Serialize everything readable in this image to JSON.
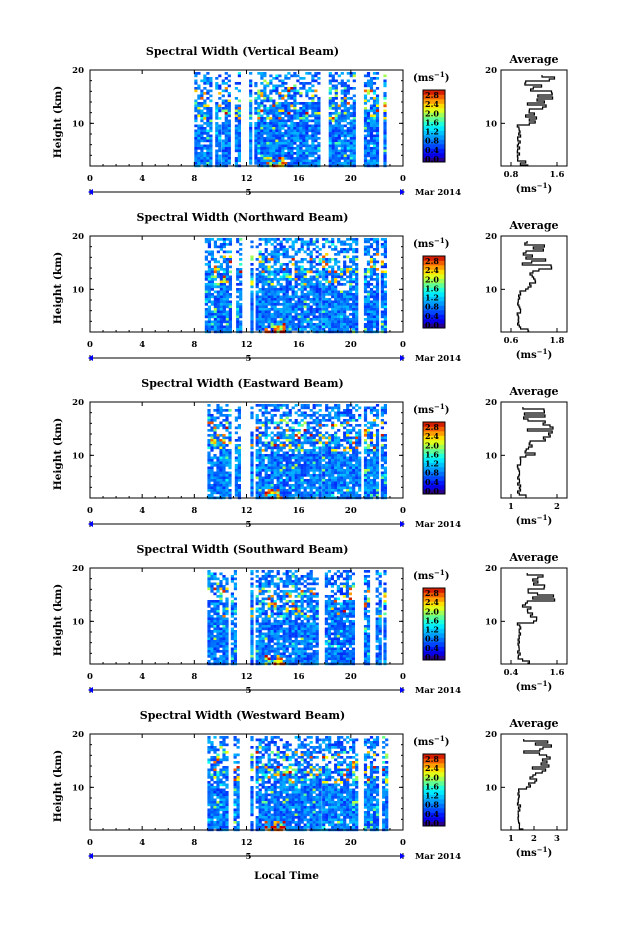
{
  "chart_data": [
    {
      "type": "heatmap",
      "title": "Spectral Width (Vertical Beam)",
      "ylabel": "Height (km)",
      "y_ticks": [
        "20",
        "10"
      ],
      "x_ticks": [
        "0",
        "4",
        "8",
        "12",
        "16",
        "20",
        "0"
      ],
      "date_label": "5",
      "date_suffix": "Mar 2014",
      "colorbar_unit": "(ms-1)",
      "colorbar_ticks": [
        "2.8",
        "2.4",
        "2.0",
        "1.6",
        "1.2",
        "0.8",
        "0.4",
        "0.0"
      ],
      "data_hours": [
        [
          8.0,
          9.2
        ],
        [
          9.6,
          9.9
        ],
        [
          10.1,
          10.7
        ],
        [
          11.1,
          11.4
        ],
        [
          12.2,
          12.4
        ],
        [
          12.6,
          17.5
        ],
        [
          18.3,
          20.3
        ],
        [
          21.0,
          22.0
        ],
        [
          22.5,
          22.7
        ]
      ],
      "average": {
        "title": "Average",
        "x_ticks": [
          "0.8",
          "1.6"
        ],
        "unit": "(ms-1)",
        "y_ticks": [
          "20",
          "10"
        ]
      }
    },
    {
      "type": "heatmap",
      "title": "Spectral Width (Northward Beam)",
      "ylabel": "Height (km)",
      "y_ticks": [
        "20",
        "10"
      ],
      "x_ticks": [
        "0",
        "4",
        "8",
        "12",
        "16",
        "20",
        "0"
      ],
      "date_label": "5",
      "date_suffix": "Mar 2014",
      "colorbar_unit": "(ms-1)",
      "colorbar_ticks": [
        "2.8",
        "2.4",
        "2.0",
        "1.6",
        "1.2",
        "0.8",
        "0.4",
        "0.0"
      ],
      "data_hours": [
        [
          8.8,
          10.8
        ],
        [
          11.2,
          11.5
        ],
        [
          12.3,
          12.5
        ],
        [
          12.7,
          17.6
        ],
        [
          17.8,
          20.5
        ],
        [
          21.0,
          22.0
        ],
        [
          22.3,
          22.6
        ]
      ],
      "average": {
        "title": "Average",
        "x_ticks": [
          "0.6",
          "1.8"
        ],
        "unit": "(ms-1)",
        "y_ticks": [
          "20",
          "10"
        ]
      }
    },
    {
      "type": "heatmap",
      "title": "Spectral Width (Eastward Beam)",
      "ylabel": "Height (km)",
      "y_ticks": [
        "20",
        "10"
      ],
      "x_ticks": [
        "0",
        "4",
        "8",
        "12",
        "16",
        "20",
        "0"
      ],
      "date_label": "5",
      "date_suffix": "Mar 2014",
      "colorbar_unit": "(ms-1)",
      "colorbar_ticks": [
        "2.8",
        "2.4",
        "2.0",
        "1.6",
        "1.2",
        "0.8",
        "0.4",
        "0.0"
      ],
      "data_hours": [
        [
          9.0,
          10.8
        ],
        [
          11.1,
          11.4
        ],
        [
          12.3,
          12.5
        ],
        [
          12.7,
          17.6
        ],
        [
          17.8,
          20.6
        ],
        [
          21.0,
          22.0
        ],
        [
          22.3,
          22.6
        ]
      ],
      "average": {
        "title": "Average",
        "x_ticks": [
          "1",
          "2"
        ],
        "unit": "(ms-1)",
        "y_ticks": [
          "20",
          "10"
        ]
      }
    },
    {
      "type": "heatmap",
      "title": "Spectral Width (Southward Beam)",
      "ylabel": "Height (km)",
      "y_ticks": [
        "20",
        "10"
      ],
      "x_ticks": [
        "0",
        "4",
        "8",
        "12",
        "16",
        "20",
        "0"
      ],
      "date_label": "5",
      "date_suffix": "Mar 2014",
      "colorbar_unit": "(ms-1)",
      "colorbar_ticks": [
        "2.8",
        "2.4",
        "2.0",
        "1.6",
        "1.2",
        "0.8",
        "0.4",
        "0.0"
      ],
      "data_hours": [
        [
          9.0,
          10.5
        ],
        [
          10.8,
          11.2
        ],
        [
          12.3,
          12.5
        ],
        [
          12.7,
          17.5
        ],
        [
          18.0,
          20.2
        ],
        [
          21.0,
          21.4
        ],
        [
          21.9,
          22.2
        ],
        [
          22.5,
          22.7
        ]
      ],
      "average": {
        "title": "Average",
        "x_ticks": [
          "0.4",
          "1.6"
        ],
        "unit": "(ms-1)",
        "y_ticks": [
          "20",
          "10"
        ]
      }
    },
    {
      "type": "heatmap",
      "title": "Spectral Width (Westward Beam)",
      "ylabel": "Height (km)",
      "y_ticks": [
        "20",
        "10"
      ],
      "x_ticks": [
        "0",
        "4",
        "8",
        "12",
        "16",
        "20",
        "0"
      ],
      "date_label": "5",
      "date_suffix": "Mar 2014",
      "colorbar_unit": "(ms-1)",
      "colorbar_ticks": [
        "2.8",
        "2.4",
        "2.0",
        "1.6",
        "1.2",
        "0.8",
        "0.4",
        "0.0"
      ],
      "data_hours": [
        [
          9.0,
          10.6
        ],
        [
          11.0,
          11.4
        ],
        [
          12.3,
          12.5
        ],
        [
          12.7,
          17.6
        ],
        [
          17.8,
          20.5
        ],
        [
          21.0,
          22.0
        ],
        [
          22.4,
          22.7
        ]
      ],
      "average": {
        "title": "Average",
        "x_ticks": [
          "1",
          "2",
          "3"
        ],
        "unit": "(ms-1)",
        "y_ticks": [
          "20",
          "10"
        ]
      }
    }
  ],
  "xlabel": "Local Time"
}
